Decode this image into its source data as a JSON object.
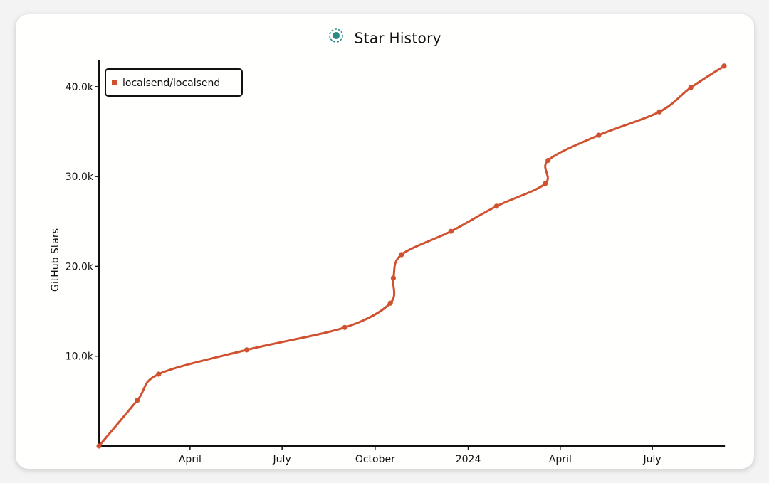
{
  "header": {
    "title": "Star History",
    "logo_icon": "star-history-logo-icon"
  },
  "colors": {
    "series": "#d0512f",
    "axis": "#111111",
    "card_background": "#fffffd",
    "logo": "#2a8a86"
  },
  "chart_data": {
    "type": "line",
    "title": "Star History",
    "xlabel": "",
    "ylabel": "GitHub Stars",
    "x_ticks": [
      "April",
      "July",
      "October",
      "2024",
      "April",
      "July"
    ],
    "y_ticks": [
      "10.0k",
      "20.0k",
      "30.0k",
      "40.0k"
    ],
    "ylim": [
      0,
      43000
    ],
    "xlim": [
      "2023-01-01",
      "2024-09-10"
    ],
    "legend_position": "top-left",
    "series": [
      {
        "name": "localsend/localsend",
        "color": "#d0512f",
        "points": [
          {
            "x": "2023-01-01",
            "y": 0
          },
          {
            "x": "2023-02-08",
            "y": 5100
          },
          {
            "x": "2023-03-01",
            "y": 8000
          },
          {
            "x": "2023-05-27",
            "y": 10700
          },
          {
            "x": "2023-09-01",
            "y": 13200
          },
          {
            "x": "2023-10-16",
            "y": 15900
          },
          {
            "x": "2023-10-19",
            "y": 18700
          },
          {
            "x": "2023-10-27",
            "y": 21300
          },
          {
            "x": "2023-12-15",
            "y": 23900
          },
          {
            "x": "2024-01-29",
            "y": 26700
          },
          {
            "x": "2024-03-17",
            "y": 29200
          },
          {
            "x": "2024-03-20",
            "y": 31800
          },
          {
            "x": "2024-05-09",
            "y": 34600
          },
          {
            "x": "2024-07-08",
            "y": 37200
          },
          {
            "x": "2024-08-08",
            "y": 39900
          },
          {
            "x": "2024-09-10",
            "y": 42300
          }
        ]
      }
    ]
  }
}
